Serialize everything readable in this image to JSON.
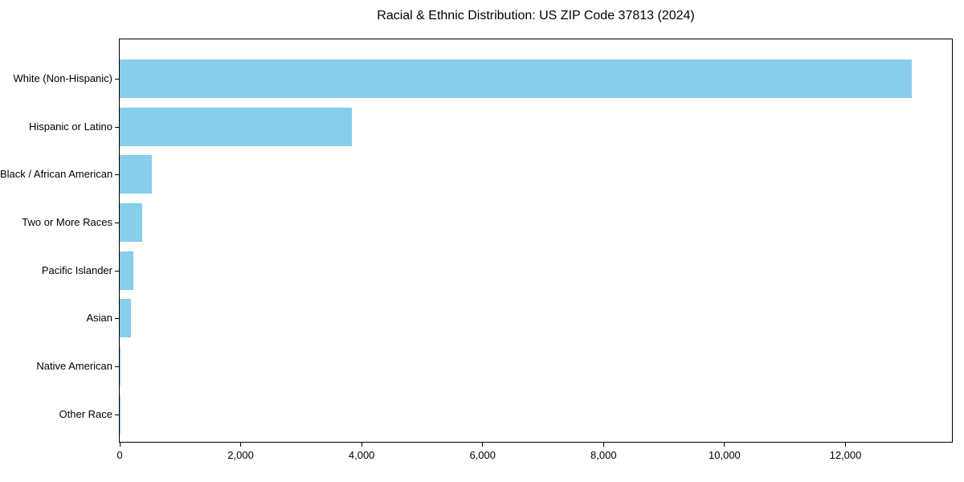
{
  "page": {
    "background_color": "#ffffff",
    "text_color": "#000000"
  },
  "chart_data": {
    "type": "bar",
    "orientation": "horizontal",
    "title": "Racial & Ethnic Distribution: US ZIP Code 37813 (2024)",
    "categories": [
      "White (Non-Hispanic)",
      "Hispanic or Latino",
      "Black / African American",
      "Two or More Races",
      "Pacific Islander",
      "Asian",
      "Native American",
      "Other Race"
    ],
    "values": [
      13100,
      3840,
      530,
      375,
      225,
      190,
      15,
      5
    ],
    "xlabel": "",
    "ylabel": "",
    "xlim": [
      0,
      13760
    ],
    "x_ticks": [
      0,
      2000,
      4000,
      6000,
      8000,
      10000,
      12000
    ],
    "x_tick_labels": [
      "0",
      "2,000",
      "4,000",
      "6,000",
      "8,000",
      "10,000",
      "12,000"
    ],
    "bar_color": "#87CEEB",
    "axis_color": "#000000",
    "grid": false,
    "legend": null,
    "value_labels": false
  }
}
